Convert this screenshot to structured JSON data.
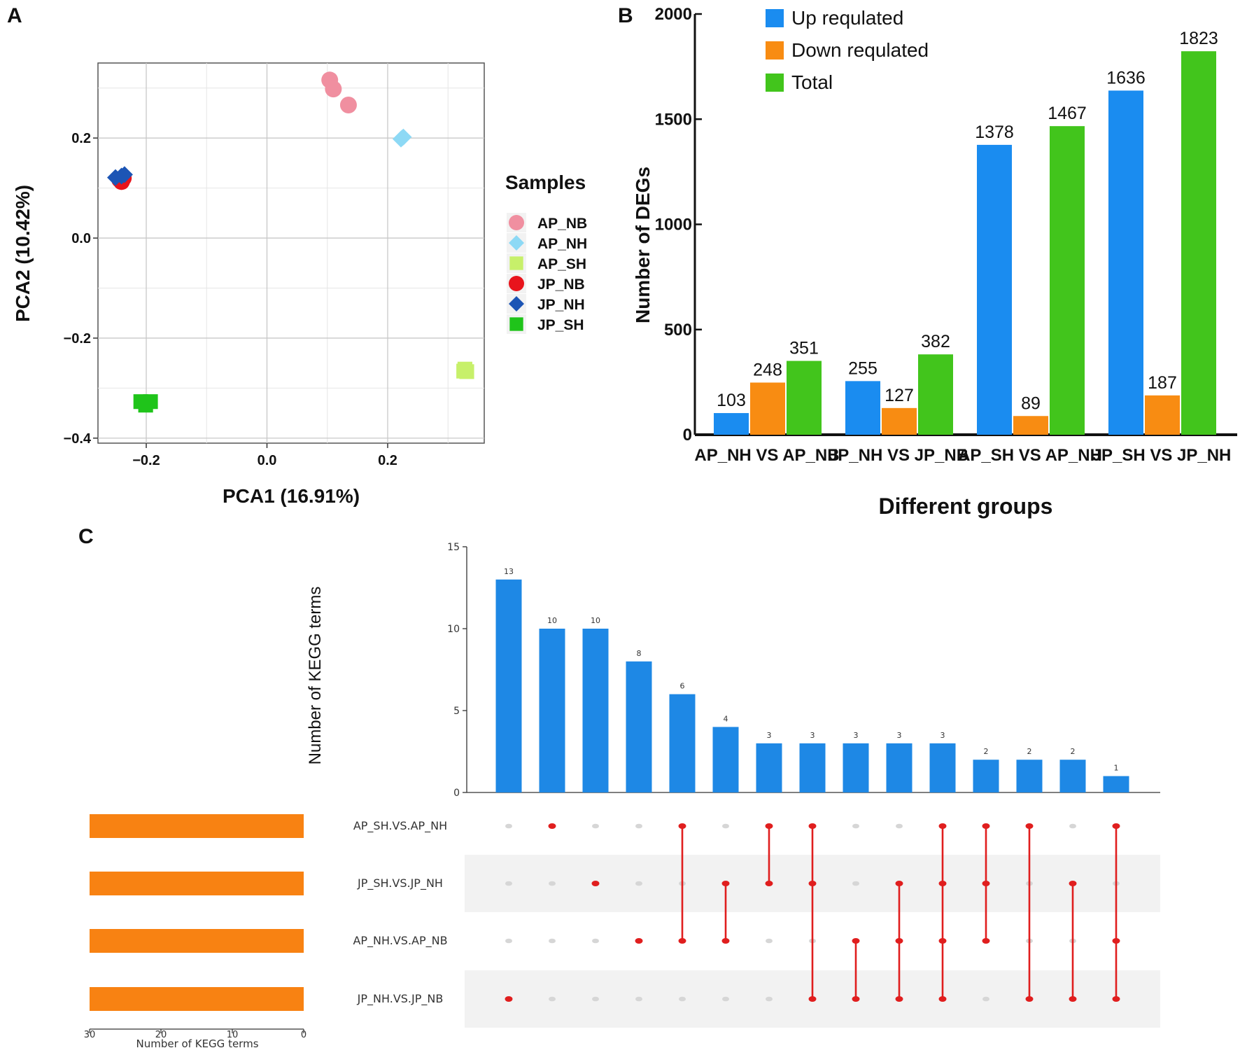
{
  "chart_data": [
    {
      "panel": "A",
      "type": "scatter",
      "xlabel": "PCA1 (16.91%)",
      "ylabel": "PCA2 (10.42%)",
      "xlim": [
        -0.28,
        0.36
      ],
      "ylim": [
        -0.41,
        0.35
      ],
      "xticks": [
        -0.2,
        0.0,
        0.2
      ],
      "xtick_labels": [
        "−0.2",
        "0.0",
        "0.2"
      ],
      "yticks": [
        -0.4,
        -0.2,
        0.0,
        0.2
      ],
      "ytick_labels": [
        "−0.4",
        "−0.2",
        "0.0",
        "0.2"
      ],
      "legend_title": "Samples",
      "legend_position": "right",
      "series": [
        {
          "name": "AP_NB",
          "color": "#f08fa0",
          "shape": "circle",
          "points": [
            [
              0.104,
              0.316
            ],
            [
              0.11,
              0.298
            ],
            [
              0.135,
              0.266
            ]
          ]
        },
        {
          "name": "AP_NH",
          "color": "#8dd9f5",
          "shape": "diamond",
          "points": [
            [
              0.222,
              0.198
            ],
            [
              0.226,
              0.202
            ],
            [
              0.224,
              0.2
            ]
          ]
        },
        {
          "name": "AP_SH",
          "color": "#c7f06a",
          "shape": "square",
          "points": [
            [
              0.328,
              -0.262
            ],
            [
              0.331,
              -0.267
            ],
            [
              0.326,
              -0.266
            ]
          ]
        },
        {
          "name": "JP_NB",
          "color": "#e8141c",
          "shape": "circle",
          "points": [
            [
              -0.244,
              0.117
            ],
            [
              -0.241,
              0.113
            ],
            [
              -0.238,
              0.12
            ]
          ]
        },
        {
          "name": "JP_NH",
          "color": "#1c55b5",
          "shape": "diamond",
          "points": [
            [
              -0.251,
              0.121
            ],
            [
              -0.241,
              0.124
            ],
            [
              -0.236,
              0.127
            ]
          ]
        },
        {
          "name": "JP_SH",
          "color": "#1fc41a",
          "shape": "square",
          "points": [
            [
              -0.209,
              -0.327
            ],
            [
              -0.201,
              -0.334
            ],
            [
              -0.193,
              -0.327
            ]
          ]
        }
      ]
    },
    {
      "panel": "B",
      "type": "bar",
      "xlabel": "Different groups",
      "ylabel": "Number of DEGs",
      "ylim": [
        0,
        2000
      ],
      "yticks": [
        0,
        500,
        1000,
        1500,
        2000
      ],
      "categories": [
        "AP_NH VS AP_NB",
        "JP_NH VS JP_NB",
        "AP_SH VS AP_NH",
        "JP_SH VS JP_NH"
      ],
      "series": [
        {
          "name": "Up requlated",
          "color": "#1a8cf0",
          "values": [
            103,
            255,
            1378,
            1636
          ]
        },
        {
          "name": "Down requlated",
          "color": "#f88c12",
          "values": [
            248,
            127,
            89,
            187
          ]
        },
        {
          "name": "Total",
          "color": "#42c51c",
          "values": [
            351,
            382,
            1467,
            1823
          ]
        }
      ],
      "legend_position": "top-left"
    },
    {
      "panel": "C",
      "type": "upset",
      "ylabel": "Number of KEGG terms",
      "set_size_xlabel": "Number of KEGG terms",
      "ylim": [
        0,
        15
      ],
      "yticks": [
        0,
        5,
        10,
        15
      ],
      "set_size_ticks": [
        30,
        20,
        10,
        0
      ],
      "bar_color": "#1e88e5",
      "dot_color": "#e01e1e",
      "set_bar_color": "#f88212",
      "sets": [
        {
          "name": "AP_SH.VS.AP_NH",
          "size": 30
        },
        {
          "name": "JP_SH.VS.JP_NH",
          "size": 30
        },
        {
          "name": "AP_NH.VS.AP_NB",
          "size": 30
        },
        {
          "name": "JP_NH.VS.JP_NB",
          "size": 30
        }
      ],
      "intersections": [
        {
          "value": 13,
          "sets": [
            3
          ]
        },
        {
          "value": 10,
          "sets": [
            0
          ]
        },
        {
          "value": 10,
          "sets": [
            1
          ]
        },
        {
          "value": 8,
          "sets": [
            2
          ]
        },
        {
          "value": 6,
          "sets": [
            0,
            2
          ]
        },
        {
          "value": 4,
          "sets": [
            1,
            2
          ]
        },
        {
          "value": 3,
          "sets": [
            0,
            1
          ]
        },
        {
          "value": 3,
          "sets": [
            0,
            1,
            3
          ]
        },
        {
          "value": 3,
          "sets": [
            2,
            3
          ]
        },
        {
          "value": 3,
          "sets": [
            1,
            2,
            3
          ]
        },
        {
          "value": 3,
          "sets": [
            0,
            1,
            2,
            3
          ]
        },
        {
          "value": 2,
          "sets": [
            0,
            1,
            2
          ]
        },
        {
          "value": 2,
          "sets": [
            0,
            3
          ]
        },
        {
          "value": 2,
          "sets": [
            1,
            3
          ]
        },
        {
          "value": 1,
          "sets": [
            0,
            2,
            3
          ]
        }
      ]
    }
  ],
  "panel_labels": {
    "a": "A",
    "b": "B",
    "c": "C"
  }
}
